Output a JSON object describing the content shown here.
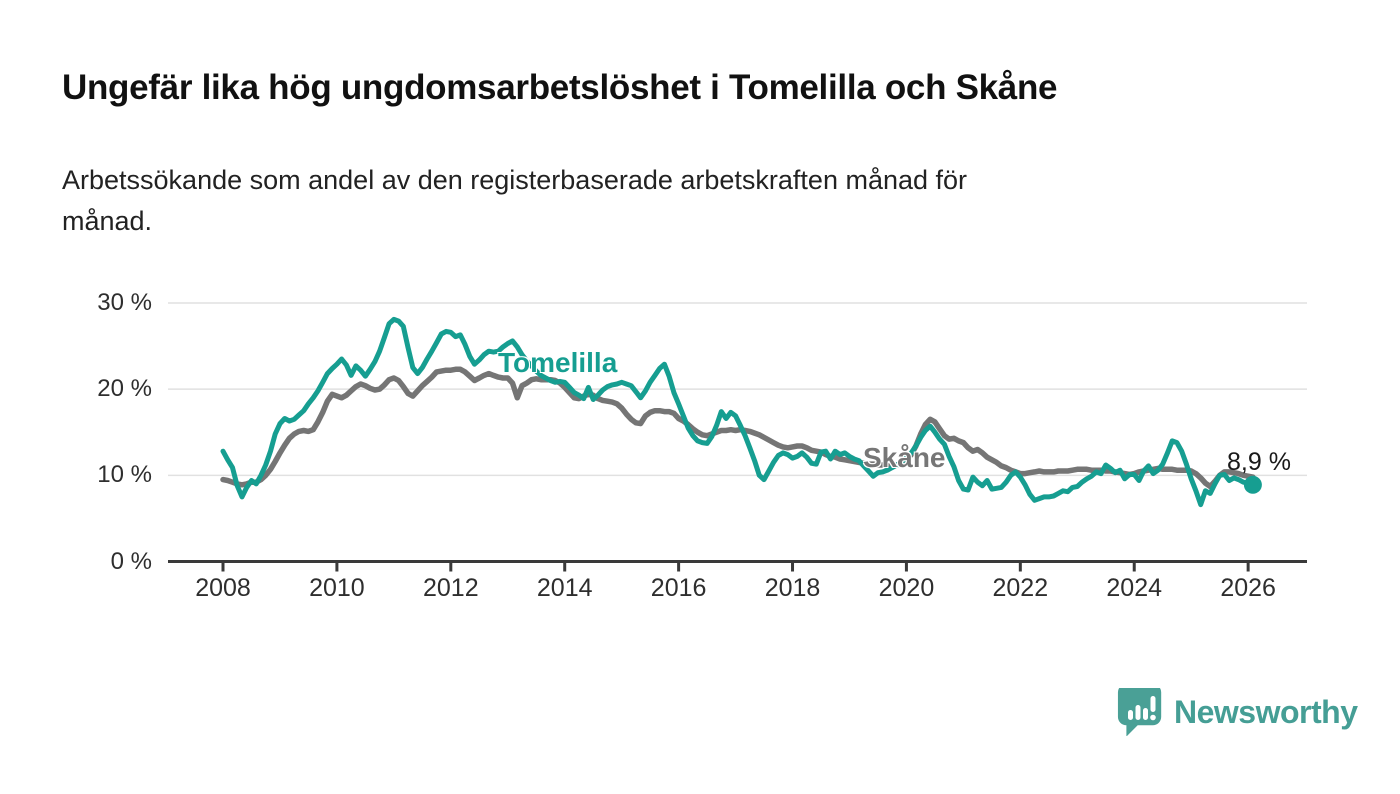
{
  "header": {
    "title": "Ungefär lika hög ungdomsarbetslöshet i Tomelilla och Skåne",
    "subtitle": "Arbetssökande som andel av den registerbaserade arbetskraften månad för\nmånad."
  },
  "chart_data": {
    "type": "line",
    "x_start": "2008-01",
    "x_end": "2026-02",
    "frequency": "monthly",
    "x_ticks": [
      2008,
      2010,
      2012,
      2014,
      2016,
      2018,
      2020,
      2022,
      2024,
      2026
    ],
    "y_ticks": [
      {
        "value": 0,
        "label": "0 %"
      },
      {
        "value": 10,
        "label": "10 %"
      },
      {
        "value": 20,
        "label": "20 %"
      },
      {
        "value": 30,
        "label": "30 %"
      }
    ],
    "ylim": [
      0,
      31
    ],
    "grid": "horizontal",
    "legend_position": "inline-labels",
    "colors": {
      "tomelilla": "#169e91",
      "skane": "#757575",
      "grid": "#e1e1e1",
      "axis": "#3a3a3a"
    },
    "end_annotation": {
      "text": "8,9 %",
      "value": 8.9,
      "series": "Tomelilla"
    },
    "series": [
      {
        "name": "Tomelilla",
        "color": "#169e91",
        "values": [
          12.8,
          11.8,
          10.9,
          8.8,
          7.5,
          8.6,
          9.4,
          9.0,
          10.0,
          11.2,
          12.8,
          14.8,
          16.0,
          16.6,
          16.3,
          16.5,
          17.0,
          17.5,
          18.3,
          19.0,
          19.8,
          20.8,
          21.8,
          22.4,
          22.9,
          23.5,
          22.8,
          21.6,
          22.7,
          22.2,
          21.5,
          22.3,
          23.2,
          24.4,
          26.0,
          27.6,
          28.1,
          27.9,
          27.3,
          24.8,
          22.5,
          21.8,
          22.5,
          23.5,
          24.4,
          25.4,
          26.4,
          26.7,
          26.6,
          26.1,
          26.3,
          25.2,
          23.8,
          22.9,
          23.4,
          24.0,
          24.4,
          24.3,
          24.4,
          24.9,
          25.3,
          25.6,
          24.9,
          24.0,
          23.3,
          22.7,
          22.1,
          21.6,
          21.3,
          21.0,
          20.8,
          20.9,
          20.8,
          20.2,
          19.6,
          19.3,
          18.9,
          20.2,
          18.8,
          19.3,
          19.9,
          20.3,
          20.5,
          20.6,
          20.8,
          20.6,
          20.4,
          19.7,
          19.0,
          19.8,
          20.8,
          21.6,
          22.4,
          22.9,
          21.5,
          19.6,
          18.3,
          16.9,
          15.5,
          14.6,
          14.0,
          13.8,
          13.7,
          14.5,
          15.8,
          17.4,
          16.6,
          17.3,
          16.9,
          15.8,
          14.6,
          13.2,
          11.7,
          10.0,
          9.5,
          10.5,
          11.5,
          12.3,
          12.6,
          12.4,
          12.0,
          12.2,
          12.6,
          12.1,
          11.4,
          11.3,
          12.7,
          12.8,
          11.9,
          12.8,
          12.4,
          12.6,
          12.2,
          11.9,
          11.7,
          11.1,
          10.5,
          9.9,
          10.3,
          10.4,
          10.6,
          10.9,
          11.2,
          11.6,
          12.0,
          12.6,
          13.4,
          14.4,
          15.2,
          15.7,
          15.0,
          14.2,
          13.6,
          12.2,
          11.0,
          9.4,
          8.4,
          8.3,
          9.8,
          9.2,
          8.8,
          9.4,
          8.4,
          8.5,
          8.6,
          9.2,
          10.0,
          10.4,
          9.8,
          8.9,
          7.8,
          7.1,
          7.3,
          7.5,
          7.5,
          7.6,
          7.9,
          8.2,
          8.1,
          8.6,
          8.7,
          9.2,
          9.6,
          9.9,
          10.4,
          10.2,
          11.2,
          10.8,
          10.3,
          10.6,
          9.6,
          10.1,
          10.1,
          9.4,
          10.5,
          11.1,
          10.2,
          10.6,
          11.3,
          12.6,
          14.0,
          13.8,
          12.8,
          11.3,
          9.6,
          8.2,
          6.6,
          8.2,
          7.9,
          9.0,
          10.0,
          10.1,
          9.4,
          9.7,
          9.5,
          9.2,
          9.1,
          8.9
        ]
      },
      {
        "name": "Skåne",
        "color": "#757575",
        "values": [
          9.5,
          9.4,
          9.2,
          9.0,
          8.9,
          9.0,
          9.2,
          9.2,
          9.5,
          10.0,
          10.7,
          11.6,
          12.6,
          13.5,
          14.3,
          14.8,
          15.1,
          15.2,
          15.1,
          15.3,
          16.2,
          17.3,
          18.6,
          19.4,
          19.2,
          19.0,
          19.3,
          19.8,
          20.3,
          20.6,
          20.4,
          20.1,
          19.9,
          20.0,
          20.5,
          21.1,
          21.3,
          21.0,
          20.3,
          19.5,
          19.2,
          19.8,
          20.4,
          20.9,
          21.4,
          22.0,
          22.1,
          22.2,
          22.2,
          22.3,
          22.3,
          22.0,
          21.5,
          21.0,
          21.3,
          21.6,
          21.8,
          21.6,
          21.4,
          21.3,
          21.3,
          20.7,
          19.0,
          20.4,
          20.7,
          21.1,
          21.2,
          21.1,
          21.1,
          21.1,
          21.0,
          20.7,
          20.2,
          19.6,
          19.0,
          18.9,
          19.2,
          19.4,
          19.3,
          18.9,
          18.7,
          18.6,
          18.5,
          18.3,
          17.8,
          17.1,
          16.5,
          16.1,
          16.0,
          16.9,
          17.3,
          17.5,
          17.5,
          17.4,
          17.4,
          17.2,
          16.6,
          16.3,
          15.9,
          15.4,
          15.0,
          14.7,
          14.6,
          14.8,
          15.0,
          15.2,
          15.2,
          15.3,
          15.2,
          15.3,
          15.2,
          15.1,
          14.9,
          14.7,
          14.4,
          14.1,
          13.8,
          13.5,
          13.3,
          13.2,
          13.3,
          13.4,
          13.4,
          13.2,
          12.9,
          12.8,
          12.7,
          12.4,
          12.2,
          12.1,
          11.9,
          11.8,
          11.7,
          11.6,
          11.5,
          11.4,
          11.3,
          11.3,
          11.2,
          11.2,
          11.1,
          11.1,
          11.2,
          11.4,
          11.8,
          12.4,
          13.4,
          14.8,
          15.9,
          16.5,
          16.2,
          15.4,
          14.6,
          14.2,
          14.3,
          14.0,
          13.8,
          13.2,
          12.8,
          13.0,
          12.6,
          12.1,
          11.8,
          11.5,
          11.1,
          10.9,
          10.6,
          10.4,
          10.2,
          10.2,
          10.3,
          10.4,
          10.5,
          10.4,
          10.4,
          10.4,
          10.5,
          10.5,
          10.5,
          10.6,
          10.7,
          10.7,
          10.7,
          10.6,
          10.6,
          10.6,
          10.5,
          10.5,
          10.4,
          10.3,
          10.2,
          10.1,
          10.2,
          10.4,
          10.5,
          10.6,
          10.7,
          10.8,
          10.7,
          10.7,
          10.7,
          10.6,
          10.6,
          10.6,
          10.5,
          10.2,
          9.7,
          9.1,
          8.7,
          9.3,
          10.0,
          10.4,
          10.4,
          10.3,
          10.2,
          10.0,
          9.9,
          9.8
        ]
      }
    ]
  },
  "branding": {
    "logo_text": "Newsworthy",
    "logo_color": "#4aa096"
  }
}
